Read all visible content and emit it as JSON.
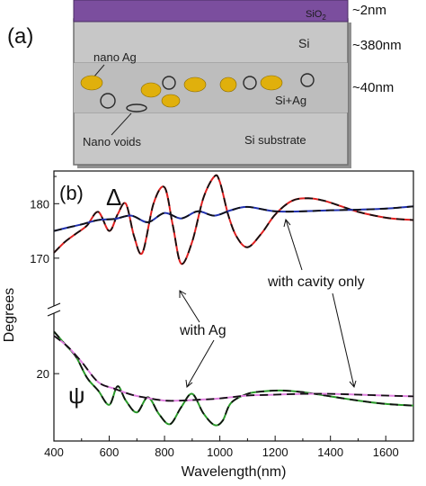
{
  "panel_a": {
    "label": "(a)",
    "layers": {
      "sio2": "SiO",
      "sio2_sub": "2",
      "si": "Si",
      "si_ag": "Si+Ag",
      "substrate": "Si substrate"
    },
    "thickness": {
      "sio2": "~2nm",
      "si": "~380nm",
      "si_ag": "~40nm"
    },
    "annotations": {
      "nano_ag": "nano Ag",
      "nano_voids": "Nano voids"
    },
    "colors": {
      "sio2": "#7b4e9e",
      "layer_fill": "#c8c8c8",
      "ag_particle": "#e0b00c",
      "void": "#333333"
    }
  },
  "panel_b": {
    "label": "(b)",
    "delta_symbol": "Δ",
    "psi_symbol": "ψ",
    "annotations": {
      "with_ag": "with Ag",
      "cavity_only": "with cavity only"
    }
  },
  "chart_data": {
    "type": "line",
    "xlabel": "Wavelength(nm)",
    "ylabel": "Degrees",
    "xlim": [
      400,
      1700
    ],
    "x_ticks": [
      "400",
      "600",
      "800",
      "1000",
      "1200",
      "1400",
      "1600"
    ],
    "y_ticks_upper": [
      "170",
      "180"
    ],
    "y_ticks_lower": [
      "20"
    ],
    "axis_break": true,
    "grid": false,
    "series": [
      {
        "color": "#e02020",
        "group": "delta",
        "x": [
          400,
          440,
          480,
          520,
          560,
          600,
          630,
          660,
          690,
          720,
          760,
          800,
          830,
          860,
          900,
          940,
          980,
          1000,
          1030,
          1060,
          1100,
          1150,
          1200,
          1260,
          1320,
          1380,
          1440,
          1500,
          1560,
          1620,
          1700
        ],
        "y": [
          171,
          173,
          174.5,
          176,
          178.5,
          175,
          178,
          180,
          174,
          171,
          180,
          183,
          176,
          169,
          173,
          181,
          185,
          184,
          178,
          174,
          172,
          174.5,
          178,
          180.5,
          181,
          180.5,
          179.5,
          178.5,
          177.8,
          177.3,
          177
        ]
      },
      {
        "color": "#2030b0",
        "group": "delta",
        "x": [
          400,
          450,
          500,
          560,
          620,
          680,
          740,
          800,
          860,
          920,
          980,
          1040,
          1100,
          1200,
          1300,
          1400,
          1500,
          1600,
          1700
        ],
        "y": [
          175,
          175.6,
          176.2,
          177,
          177.2,
          177.8,
          176.6,
          178.3,
          177.3,
          178.6,
          177.8,
          178.8,
          179.4,
          178.6,
          178.6,
          178.8,
          178.9,
          179.1,
          179.5
        ]
      },
      {
        "color": "#2a9a2a",
        "group": "psi",
        "x": [
          400,
          440,
          480,
          520,
          560,
          600,
          630,
          660,
          700,
          740,
          780,
          820,
          860,
          900,
          940,
          980,
          1010,
          1040,
          1100,
          1160,
          1220,
          1300,
          1400,
          1500,
          1600,
          1700
        ],
        "y": [
          25,
          23.5,
          22,
          19.5,
          18,
          16.3,
          18.5,
          16.8,
          15.4,
          17.2,
          15.2,
          14,
          16,
          17.6,
          15.3,
          13.9,
          14.4,
          16.5,
          17.6,
          17.9,
          18,
          17.8,
          17.3,
          16.8,
          16.4,
          16.2
        ]
      },
      {
        "color": "#e080e0",
        "group": "psi",
        "x": [
          400,
          450,
          500,
          560,
          620,
          680,
          740,
          800,
          860,
          920,
          980,
          1040,
          1100,
          1200,
          1300,
          1400,
          1500,
          1600,
          1700
        ],
        "y": [
          24.5,
          23.2,
          21.4,
          19,
          18.2,
          17.5,
          17.1,
          16.8,
          16.8,
          16.9,
          17,
          17.2,
          17.4,
          17.5,
          17.6,
          17.6,
          17.5,
          17.4,
          17.3
        ]
      }
    ]
  }
}
